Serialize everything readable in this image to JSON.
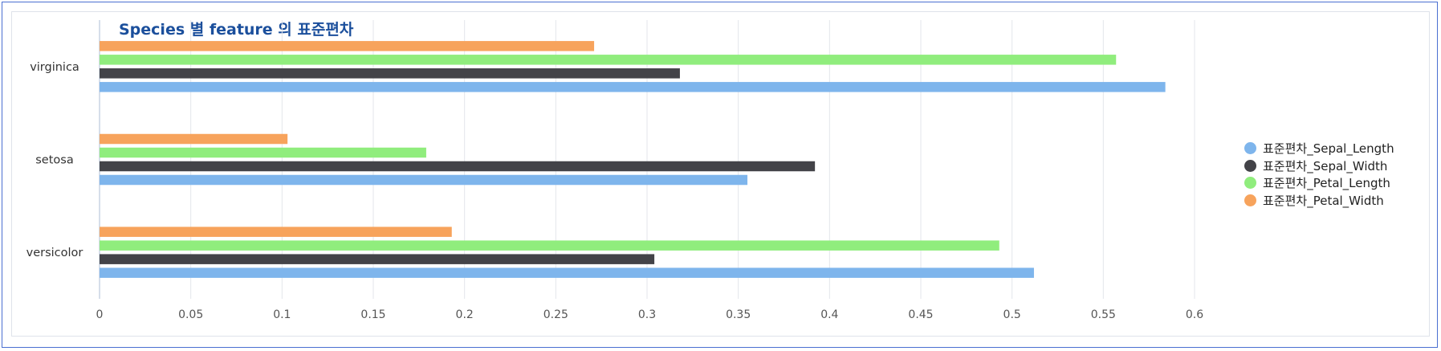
{
  "chart_data": {
    "type": "bar",
    "orientation": "horizontal",
    "title": "Species 별  feature 의 표준편차",
    "categories": [
      "virginica",
      "setosa",
      "versicolor"
    ],
    "series": [
      {
        "name": "표준편차_Sepal_Length",
        "color": "#7eb5ec",
        "values": [
          0.584,
          0.355,
          0.512
        ]
      },
      {
        "name": "표준편차_Sepal_Width",
        "color": "#434348",
        "values": [
          0.318,
          0.392,
          0.304
        ]
      },
      {
        "name": "표준편차_Petal_Length",
        "color": "#90ed7d",
        "values": [
          0.557,
          0.179,
          0.493
        ]
      },
      {
        "name": "표준편차_Petal_Width",
        "color": "#f7a35c",
        "values": [
          0.271,
          0.103,
          0.193
        ]
      }
    ],
    "xlim": [
      0,
      0.6
    ],
    "xticks": [
      "0",
      "0.05",
      "0.1",
      "0.15",
      "0.2",
      "0.25",
      "0.3",
      "0.35",
      "0.4",
      "0.45",
      "0.5",
      "0.55",
      "0.6"
    ],
    "grid": true,
    "legend_position": "right"
  }
}
